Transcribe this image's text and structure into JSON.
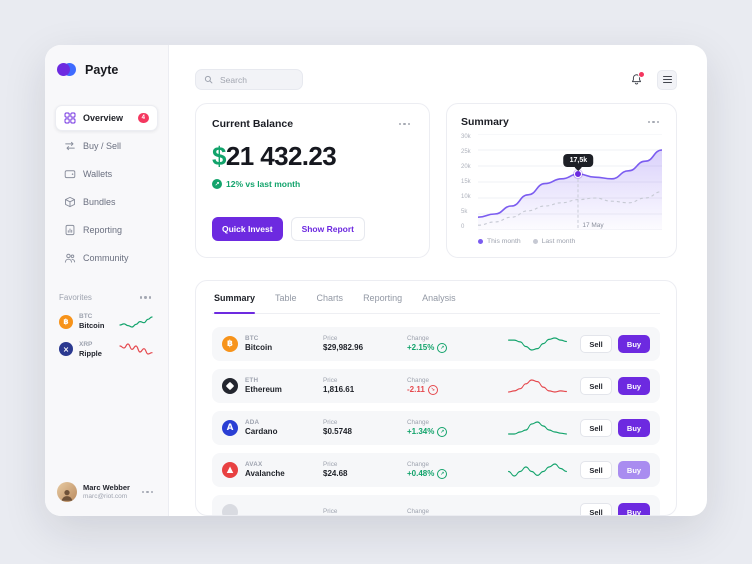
{
  "app": {
    "name": "Payte"
  },
  "colors": {
    "accent": "#6D2AE0",
    "positive": "#12A36B",
    "negative": "#E5484D",
    "chart_this_month": "#7B5CF0",
    "chart_last_month": "#C6C9D3"
  },
  "topbar": {
    "search_placeholder": "Search"
  },
  "sidebar": {
    "nav": [
      {
        "id": "overview",
        "label": "Overview",
        "icon": "grid-icon",
        "badge": "4",
        "active": true
      },
      {
        "id": "buy-sell",
        "label": "Buy / Sell",
        "icon": "swap-icon",
        "active": false
      },
      {
        "id": "wallets",
        "label": "Wallets",
        "icon": "wallet-icon",
        "active": false
      },
      {
        "id": "bundles",
        "label": "Bundles",
        "icon": "bundle-icon",
        "active": false
      },
      {
        "id": "reporting",
        "label": "Reporting",
        "icon": "report-icon",
        "active": false
      },
      {
        "id": "community",
        "label": "Community",
        "icon": "community-icon",
        "active": false
      }
    ],
    "favorites": {
      "title": "Favorites",
      "items": [
        {
          "symbol": "BTC",
          "name": "Bitcoin",
          "glyph": "฿",
          "icon_bg": "#F7931A",
          "direction": "up",
          "spark": [
            3.2,
            3.6,
            3.0,
            2.5,
            3.4,
            4.4,
            4.0,
            5.2,
            6.0
          ]
        },
        {
          "symbol": "XRP",
          "name": "Ripple",
          "glyph": "×",
          "icon_bg": "#2B3990",
          "direction": "down",
          "spark": [
            5.6,
            5.0,
            6.2,
            4.6,
            5.6,
            3.8,
            4.8,
            3.2,
            3.6
          ]
        }
      ]
    },
    "user": {
      "name": "Marc Webber",
      "email": "marc@riot.com"
    }
  },
  "balance": {
    "title": "Current Balance",
    "currency_symbol": "$",
    "amount": "21 432.23",
    "delta_text": "12% vs last month",
    "primary_button": "Quick Invest",
    "secondary_button": "Show Report"
  },
  "summary": {
    "title": "Summary",
    "tooltip": "17,5k",
    "date_label": "17 May",
    "legend": [
      {
        "label": "This month",
        "color": "#7B5CF0"
      },
      {
        "label": "Last month",
        "color": "#C6C9D3"
      }
    ],
    "chart_data": {
      "type": "area",
      "title": "Summary",
      "ylim": [
        0,
        30
      ],
      "yticks": [
        "30k",
        "25k",
        "20k",
        "15k",
        "10k",
        "5k",
        "0"
      ],
      "x_annotation": "17 May",
      "legend_position": "bottom-left",
      "series": [
        {
          "name": "This month",
          "style": "solid",
          "values": [
            4,
            5,
            7.5,
            11,
            14.5,
            16,
            17.5,
            16.5,
            16,
            18.5,
            21.5,
            25
          ]
        },
        {
          "name": "Last month",
          "style": "dashed",
          "values": [
            1.5,
            2.5,
            4,
            6,
            7.5,
            8.5,
            9.5,
            10,
            9,
            8.5,
            10,
            12
          ]
        }
      ],
      "marker": {
        "series": 0,
        "index": 6,
        "label": "17,5k"
      }
    }
  },
  "assets": {
    "tabs": [
      {
        "label": "Summary",
        "active": true
      },
      {
        "label": "Table",
        "active": false
      },
      {
        "label": "Charts",
        "active": false
      },
      {
        "label": "Reporting",
        "active": false
      },
      {
        "label": "Analysis",
        "active": false
      }
    ],
    "table": {
      "price_label": "Price",
      "change_label": "Change",
      "sell_label": "Sell",
      "buy_label": "Buy",
      "rows": [
        {
          "symbol": "BTC",
          "name": "Bitcoin",
          "glyph": "฿",
          "icon_bg": "#F7931A",
          "price": "$29,982.96",
          "change": "+2.15%",
          "direction": "up",
          "spark": [
            6,
            6,
            5.5,
            4.2,
            3.2,
            3.6,
            5,
            6.2,
            6.6,
            6,
            5.6
          ],
          "buy_variant": ""
        },
        {
          "symbol": "ETH",
          "name": "Ethereum",
          "glyph": "diamond",
          "icon_bg": "#23262F",
          "price": "1,816.61",
          "change": "-2.11",
          "direction": "down",
          "spark": [
            3,
            3.4,
            4.2,
            6,
            7.4,
            6.8,
            4.8,
            3.4,
            3,
            3.4,
            3.2
          ],
          "buy_variant": ""
        },
        {
          "symbol": "ADA",
          "name": "Cardano",
          "glyph": "A",
          "icon_bg": "#2A3FD4",
          "price": "$0.5748",
          "change": "+1.34%",
          "direction": "up",
          "spark": [
            4,
            4,
            4.5,
            5,
            6.5,
            7,
            6,
            5,
            4.5,
            4.2,
            4
          ],
          "buy_variant": ""
        },
        {
          "symbol": "AVAX",
          "name": "Avalanche",
          "glyph": "▲",
          "icon_bg": "#E84142",
          "price": "$24.68",
          "change": "+0.48%",
          "direction": "up",
          "spark": [
            5,
            4.4,
            5,
            5.6,
            5,
            4.5,
            5,
            5.6,
            6,
            5.4,
            5
          ],
          "buy_variant": "light"
        },
        {
          "partial": true,
          "symbol": "",
          "name": "",
          "price": "",
          "change": ""
        }
      ]
    }
  }
}
